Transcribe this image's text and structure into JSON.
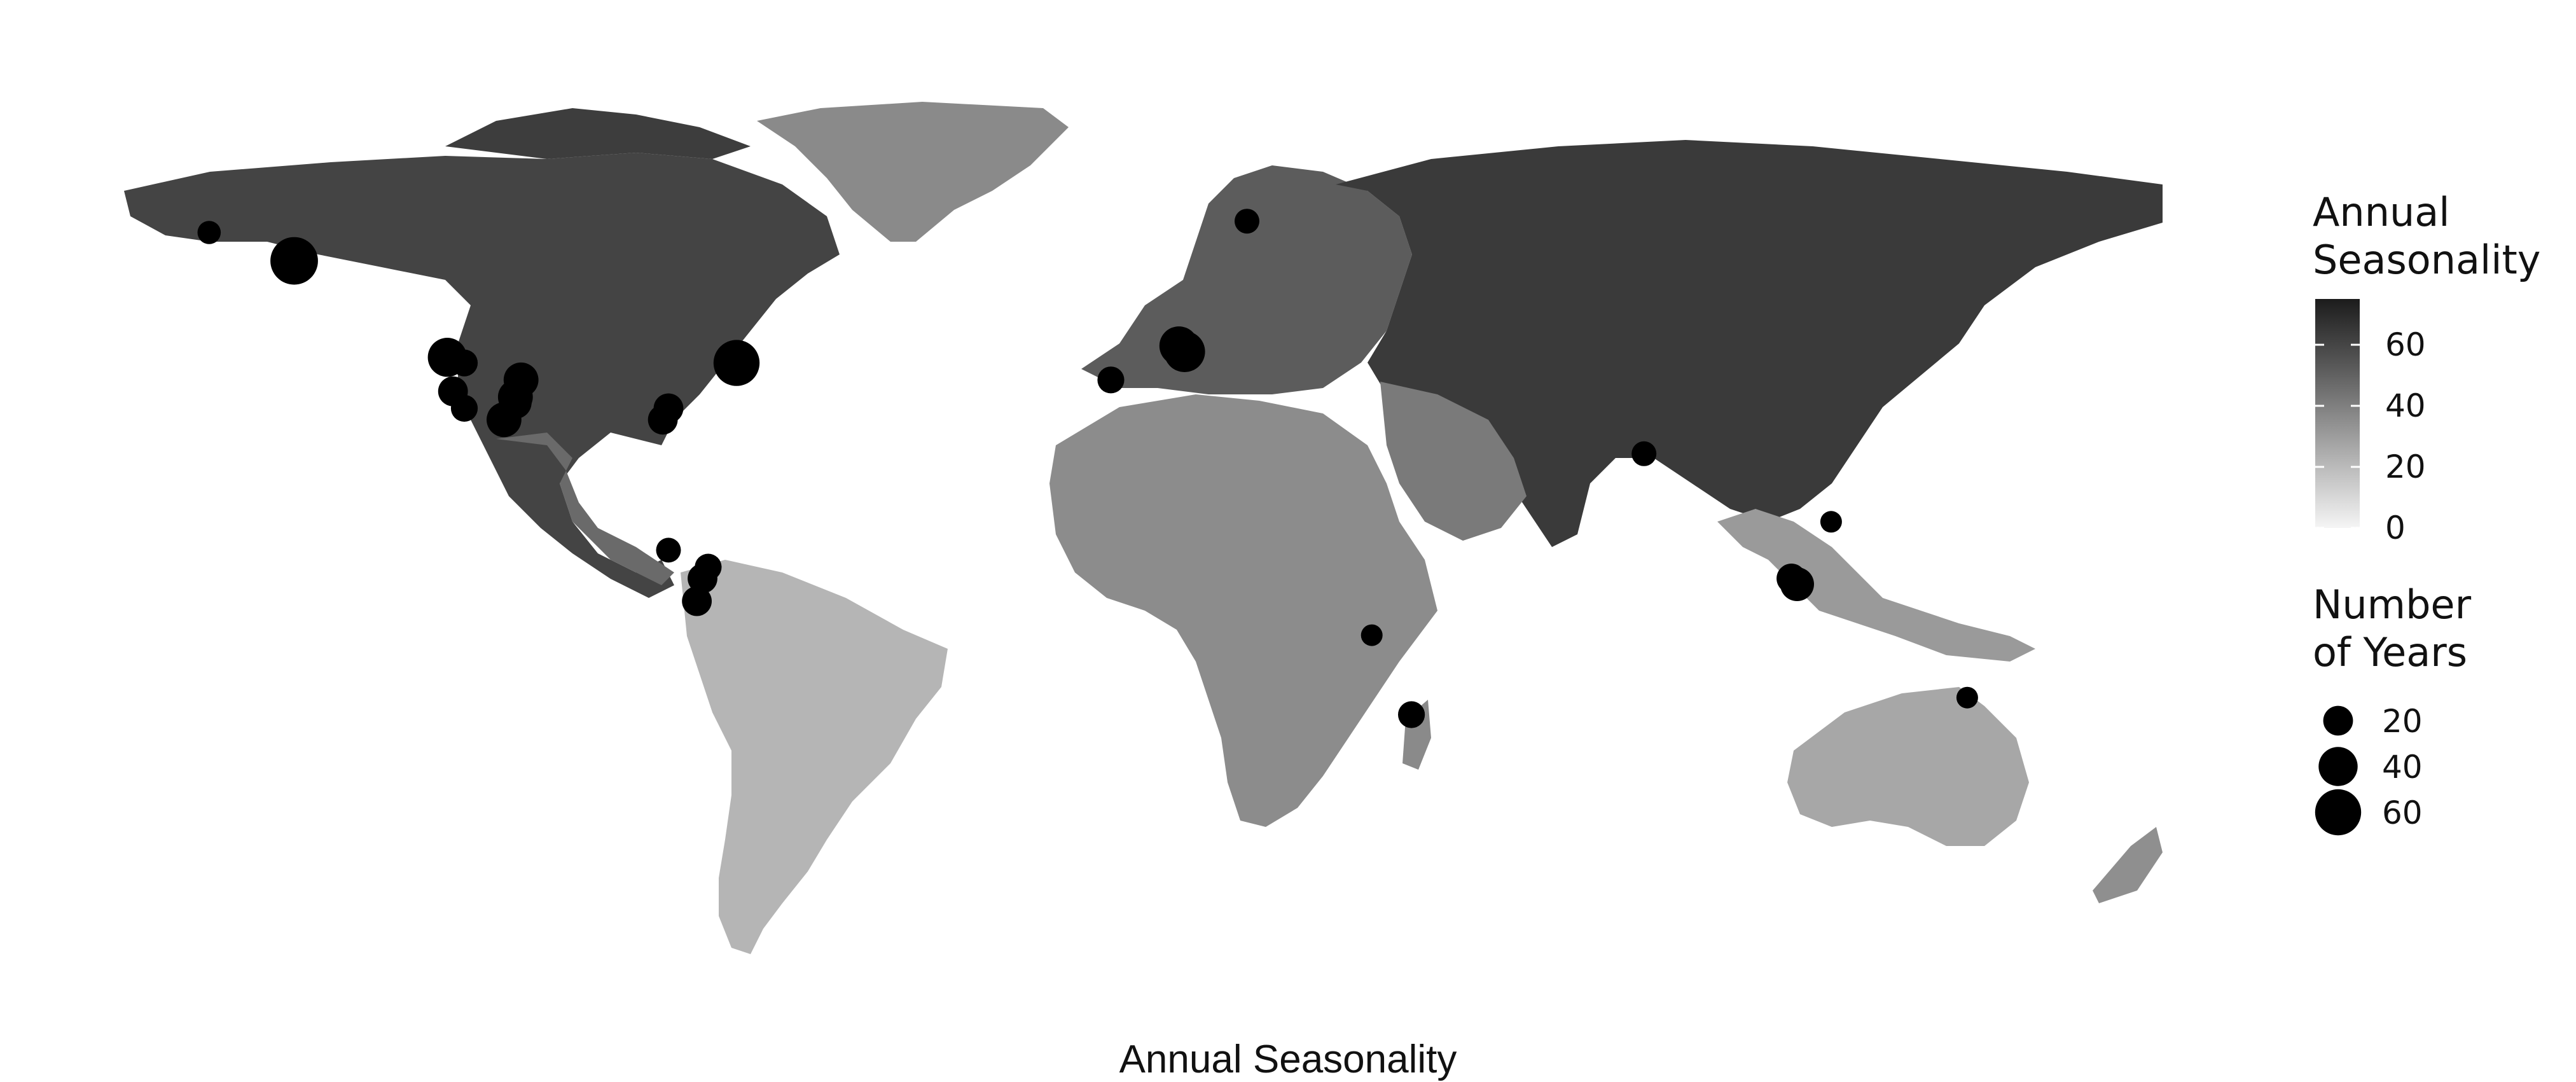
{
  "caption": "Annual Seasonality",
  "legend": {
    "fill": {
      "title_line1": "Annual",
      "title_line2": "Seasonality",
      "ticks": [
        0,
        20,
        40,
        60
      ],
      "range": [
        0,
        75
      ],
      "colors": [
        "#f2f2f2",
        "#1e1e1e"
      ]
    },
    "size": {
      "title_line1": "Number",
      "title_line2": "of Years",
      "entries": [
        20,
        40,
        60
      ]
    }
  },
  "map_data": {
    "type": "world-map-bubbles",
    "fill_variable": "Annual Seasonality",
    "size_variable": "Number of Years",
    "sites": [
      {
        "lon": -165,
        "lat": 66,
        "years": 10
      },
      {
        "lon": -150,
        "lat": 61,
        "years": 65
      },
      {
        "lon": -123,
        "lat": 44,
        "years": 40
      },
      {
        "lon": -120,
        "lat": 43,
        "years": 15
      },
      {
        "lon": -122,
        "lat": 38,
        "years": 20
      },
      {
        "lon": -120,
        "lat": 35,
        "years": 15
      },
      {
        "lon": -110,
        "lat": 40,
        "years": 30
      },
      {
        "lon": -111,
        "lat": 37,
        "years": 30
      },
      {
        "lon": -111,
        "lat": 36,
        "years": 25
      },
      {
        "lon": -113,
        "lat": 33,
        "years": 30
      },
      {
        "lon": -72,
        "lat": 43,
        "years": 60
      },
      {
        "lon": -84,
        "lat": 35,
        "years": 20
      },
      {
        "lon": -85,
        "lat": 33,
        "years": 20
      },
      {
        "lon": -84,
        "lat": 10,
        "years": 12
      },
      {
        "lon": -77,
        "lat": 7,
        "years": 15
      },
      {
        "lon": -78,
        "lat": 5,
        "years": 20
      },
      {
        "lon": -79,
        "lat": 1,
        "years": 20
      },
      {
        "lon": 18,
        "lat": 68,
        "years": 12
      },
      {
        "lon": 6,
        "lat": 46,
        "years": 40
      },
      {
        "lon": 7,
        "lat": 45,
        "years": 45
      },
      {
        "lon": -6,
        "lat": 40,
        "years": 15
      },
      {
        "lon": 88,
        "lat": 27,
        "years": 12
      },
      {
        "lon": 121,
        "lat": 15,
        "years": 8
      },
      {
        "lon": 114,
        "lat": 5,
        "years": 20
      },
      {
        "lon": 115,
        "lat": 4,
        "years": 28
      },
      {
        "lon": 40,
        "lat": -5,
        "years": 8
      },
      {
        "lon": 47,
        "lat": -19,
        "years": 15
      },
      {
        "lon": 145,
        "lat": -16,
        "years": 8
      }
    ]
  }
}
